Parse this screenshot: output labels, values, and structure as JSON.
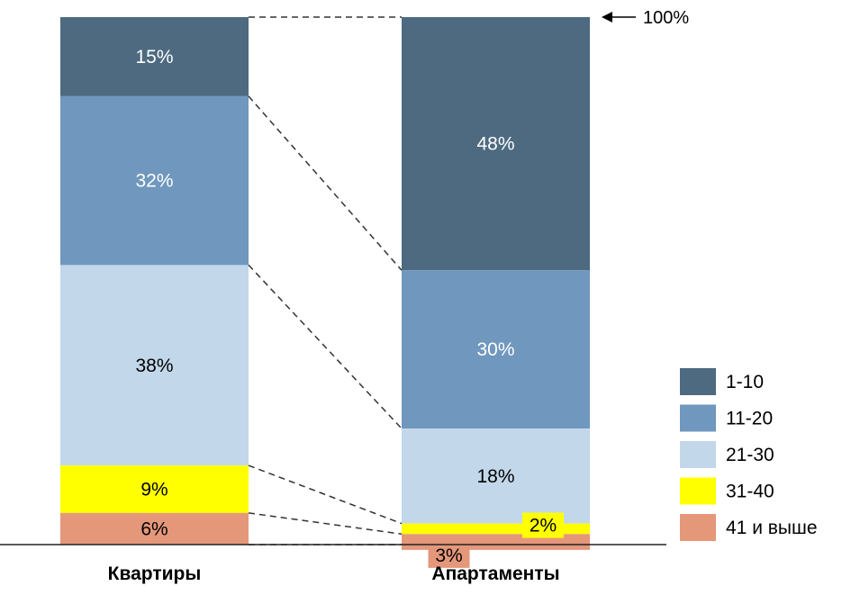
{
  "chart_data": {
    "type": "bar",
    "stacked": true,
    "percent": true,
    "categories": [
      "Квартиры",
      "Апартаменты"
    ],
    "series": [
      {
        "name": "1-10",
        "values": [
          15,
          48
        ],
        "labels": [
          "15%",
          "48%"
        ],
        "color": "#4d6a80"
      },
      {
        "name": "11-20",
        "values": [
          32,
          30
        ],
        "labels": [
          "32%",
          "30%"
        ],
        "color": "#7097bd"
      },
      {
        "name": "21-30",
        "values": [
          38,
          18
        ],
        "labels": [
          "38%",
          "18%"
        ],
        "color": "#c2d7ea"
      },
      {
        "name": "31-40",
        "values": [
          9,
          2
        ],
        "labels": [
          "9%",
          "2%"
        ],
        "color": "#ffff00"
      },
      {
        "name": "41 и выше",
        "values": [
          6,
          3
        ],
        "labels": [
          "6%",
          "3%"
        ],
        "color": "#e5977a"
      }
    ],
    "reference_label": "100%",
    "connectors": "dashed",
    "legend_position": "right",
    "ylim": [
      0,
      100
    ],
    "grid": false
  }
}
